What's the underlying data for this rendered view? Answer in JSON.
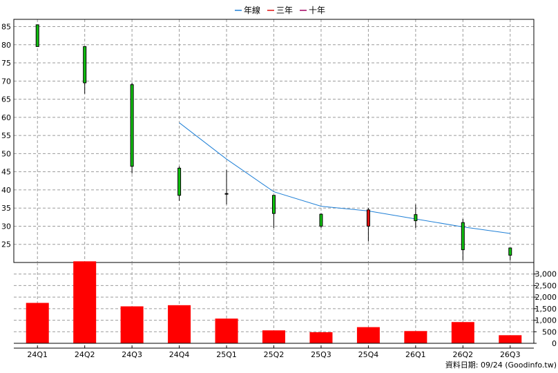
{
  "chart_data": {
    "type": "candlestick+bar",
    "legend": {
      "placement": "top-center",
      "items": [
        {
          "label": "年線",
          "color": "#1e7fd6"
        },
        {
          "label": "三年",
          "color": "#e01010"
        },
        {
          "label": "十年",
          "color": "#a00060"
        }
      ]
    },
    "categories": [
      "24Q1",
      "24Q2",
      "24Q3",
      "24Q4",
      "25Q1",
      "25Q2",
      "25Q3",
      "25Q4",
      "26Q1",
      "26Q2",
      "26Q3"
    ],
    "price": {
      "ylim": [
        20,
        87
      ],
      "yticks": [
        25,
        30,
        35,
        40,
        45,
        50,
        55,
        60,
        65,
        70,
        75,
        80,
        85
      ],
      "up_color": "#e01010",
      "down_color": "#10c010",
      "candles": [
        {
          "open": 85.5,
          "close": 79.5,
          "high": 85.5,
          "low": 79.5
        },
        {
          "open": 79.5,
          "close": 69.5,
          "high": 79.5,
          "low": 66.5
        },
        {
          "open": 69.0,
          "close": 46.5,
          "high": 69.5,
          "low": 44.5
        },
        {
          "open": 46.0,
          "close": 38.5,
          "high": 46.5,
          "low": 37.0
        },
        {
          "open": 39.0,
          "close": 39.0,
          "high": 45.5,
          "low": 36.0
        },
        {
          "open": 38.5,
          "close": 33.5,
          "high": 38.5,
          "low": 29.5
        },
        {
          "open": 33.3,
          "close": 30.0,
          "high": 33.5,
          "low": 29.5
        },
        {
          "open": 30.0,
          "close": 34.5,
          "high": 35.0,
          "low": 25.8
        },
        {
          "open": 33.2,
          "close": 31.5,
          "high": 36.0,
          "low": 29.5
        },
        {
          "open": 31.0,
          "close": 23.5,
          "high": 32.0,
          "low": 20.5
        },
        {
          "open": 24.0,
          "close": 22.0,
          "high": 24.0,
          "low": 20.5
        }
      ],
      "year_line": {
        "start_index": 3,
        "values": [
          58.5,
          48.5,
          39.5,
          35.5,
          34.2,
          32.0,
          29.8,
          28.0
        ]
      }
    },
    "volume": {
      "ylim": [
        0,
        3500
      ],
      "yticks": [
        0,
        500,
        1000,
        1500,
        2000,
        2500,
        3000
      ],
      "ytick_labels": [
        "0",
        "500",
        "1,000",
        "1,500",
        "2,000",
        "2,500",
        "3,000"
      ],
      "color": "#ff0000",
      "values": [
        1750,
        3550,
        1600,
        1650,
        1070,
        560,
        480,
        700,
        530,
        920,
        350
      ]
    },
    "footer": "資料日期: 09/24  (Goodinfo.tw)"
  }
}
